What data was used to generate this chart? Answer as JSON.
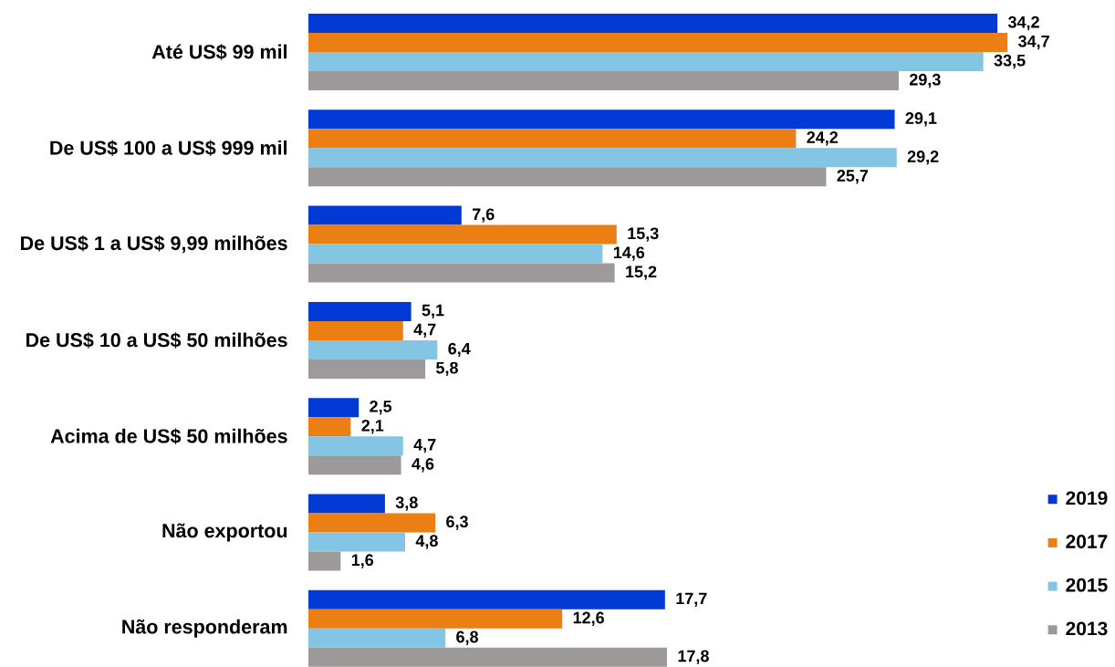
{
  "chart_data": {
    "type": "bar",
    "orientation": "horizontal",
    "tick_labels": "y",
    "legend": "bottom right",
    "categories": [
      "Até US$ 99 mil",
      "De US$ 100 a US$ 999 mil",
      "De US$ 1 a US$ 9,99 milhões",
      "De US$ 10 a US$ 50 milhões",
      "Acima de US$ 50 milhões",
      "Não exportou",
      "Não responderam"
    ],
    "series": [
      {
        "name": "2019",
        "color": "#0039d3",
        "values": [
          34.2,
          29.1,
          7.6,
          5.1,
          2.5,
          3.8,
          17.7
        ],
        "value_labels": [
          "34,2",
          "29,1",
          "7,6",
          "5,1",
          "2,5",
          "3,8",
          "17,7"
        ]
      },
      {
        "name": "2017",
        "color": "#ec7f13",
        "values": [
          34.7,
          24.2,
          15.3,
          4.7,
          2.1,
          6.3,
          12.6
        ],
        "value_labels": [
          "34,7",
          "24,2",
          "15,3",
          "4,7",
          "2,1",
          "6,3",
          "12,6"
        ]
      },
      {
        "name": "2015",
        "color": "#83c5e3",
        "values": [
          33.5,
          29.2,
          14.6,
          6.4,
          4.7,
          4.8,
          6.8
        ],
        "value_labels": [
          "33,5",
          "29,2",
          "14,6",
          "6,4",
          "4,7",
          "4,8",
          "6,8"
        ]
      },
      {
        "name": "2013",
        "color": "#9e9a99",
        "values": [
          29.3,
          25.7,
          15.2,
          5.8,
          4.6,
          1.6,
          17.8
        ],
        "value_labels": [
          "29,3",
          "25,7",
          "15,2",
          "5,8",
          "4,6",
          "1,6",
          "17,8"
        ]
      }
    ]
  }
}
